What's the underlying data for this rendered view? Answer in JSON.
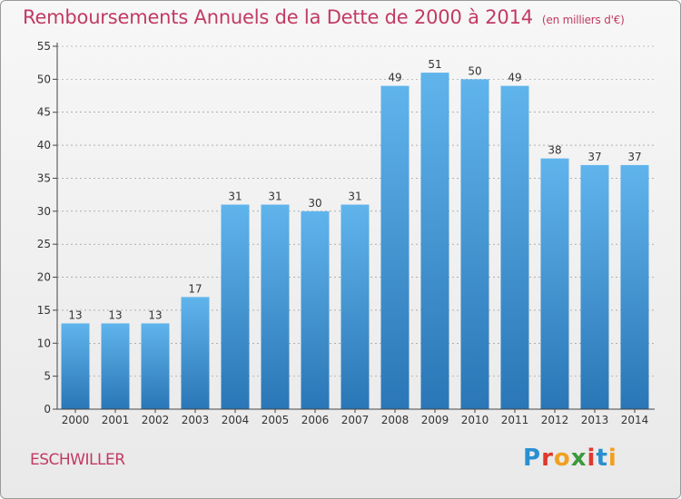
{
  "header": {
    "title": "Remboursements Annuels de la Dette de 2000 à 2014",
    "unit": "(en milliers d'€)"
  },
  "footer": {
    "commune": "ESCHWILLER",
    "logo_letters": [
      "P",
      "r",
      "o",
      "x",
      "i",
      "t",
      "i"
    ],
    "logo_colors": [
      "#2a8fd0",
      "#e0382c",
      "#f0a020",
      "#3a9a3a",
      "#e0382c",
      "#2a8fd0",
      "#f0a020"
    ]
  },
  "colors": {
    "title": "#c23a64",
    "bar_top": "#60b4ec",
    "bar_bottom": "#2a76b6",
    "axis": "#444444",
    "grid_dash": "#888888"
  },
  "chart_data": {
    "type": "bar",
    "title": "Remboursements Annuels de la Dette de 2000 à 2014",
    "xlabel": "",
    "ylabel": "",
    "categories": [
      "2000",
      "2001",
      "2002",
      "2003",
      "2004",
      "2005",
      "2006",
      "2007",
      "2008",
      "2009",
      "2010",
      "2011",
      "2012",
      "2013",
      "2014"
    ],
    "values": [
      13,
      13,
      13,
      17,
      31,
      31,
      30,
      31,
      49,
      51,
      50,
      49,
      38,
      37,
      37
    ],
    "ylim": [
      0,
      55
    ],
    "yticks": [
      0,
      5,
      10,
      15,
      20,
      25,
      30,
      35,
      40,
      45,
      50,
      55
    ],
    "data_labels": true,
    "grid": false
  }
}
